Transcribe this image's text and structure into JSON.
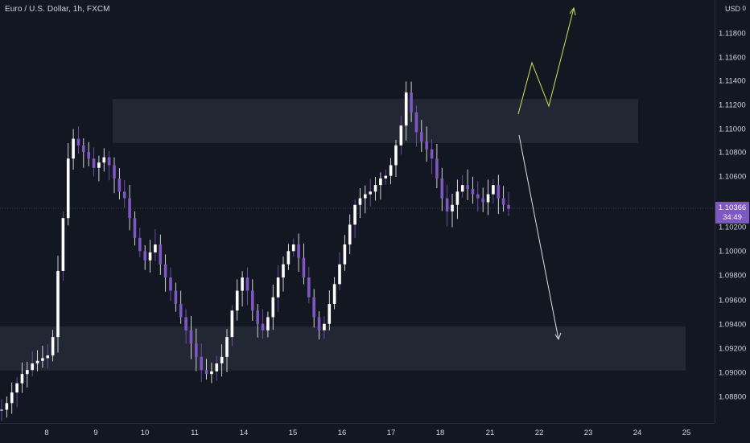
{
  "header": {
    "symbol": "Euro / U.S. Dollar, 1h, FXCM"
  },
  "price_axis": {
    "currency": "USD",
    "currency_suffix": "0",
    "labels": [
      "1.11800",
      "1.11600",
      "1.11400",
      "1.11200",
      "1.11000",
      "1.10800",
      "1.10600",
      "1.10200",
      "1.10000",
      "1.09800",
      "1.09600",
      "1.09400",
      "1.09200",
      "1.09000",
      "1.08800"
    ],
    "last_price": "1.10366",
    "countdown": "34:49"
  },
  "time_axis": {
    "labels": [
      "8",
      "9",
      "10",
      "11",
      "14",
      "15",
      "16",
      "17",
      "18",
      "21",
      "22",
      "23",
      "24",
      "25"
    ]
  },
  "colors": {
    "background": "#131722",
    "candle": "#ffffff",
    "candle_accent": "#7e57c2",
    "zone": "#2a2e39",
    "bullish_path": "#d4e157",
    "bearish_arrow": "#e0e0e0",
    "last_price_tag": "#7e57c2"
  },
  "chart_data": {
    "type": "candlestick",
    "series": [
      {
        "values": [
          1.0885,
          1.089,
          1.0898,
          1.0905,
          1.0912,
          1.0915,
          1.092,
          1.0922,
          1.0924,
          1.0926,
          1.094,
          1.099,
          1.103,
          1.1075,
          1.109,
          1.1085,
          1.108,
          1.1075,
          1.1068,
          1.1072,
          1.1076,
          1.107,
          1.106,
          1.105,
          1.1045,
          1.103,
          1.1015,
          1.1005,
          1.0998,
          1.1004,
          1.101,
          1.0995,
          1.0985,
          1.0975,
          1.0965,
          1.0955,
          1.0945,
          1.0935,
          1.0925,
          1.0915,
          1.0912,
          1.0914,
          1.092,
          1.0925,
          1.094,
          1.096,
          1.0975,
          1.0985,
          1.0975,
          1.096,
          1.095,
          1.0945,
          1.0955,
          1.097,
          1.0985,
          1.0995,
          1.1005,
          1.101,
          1.1,
          1.0985,
          1.097,
          1.0955,
          1.0945,
          1.095,
          1.0965,
          1.098,
          1.0995,
          1.101,
          1.1025,
          1.104,
          1.1045,
          1.1048,
          1.105,
          1.1055,
          1.106,
          1.1062,
          1.107,
          1.1085,
          1.11,
          1.1125,
          1.111,
          1.1095,
          1.1088,
          1.1082,
          1.1075,
          1.106,
          1.1045,
          1.1035,
          1.104,
          1.105,
          1.1055,
          1.1052,
          1.1048,
          1.1045,
          1.1042,
          1.1048,
          1.1055,
          1.1045,
          1.104,
          1.1037
        ]
      }
    ],
    "ylim": [
      1.0875,
      1.1195
    ],
    "levels": {
      "resistance_zone": [
        1.1091,
        1.1125
      ],
      "support_zone": [
        1.0902,
        1.0937
      ]
    }
  }
}
